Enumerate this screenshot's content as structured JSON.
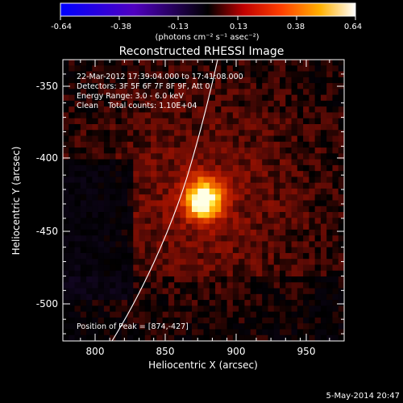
{
  "colorbar": {
    "ticks": [
      "-0.64",
      "-0.38",
      "-0.13",
      "0.13",
      "0.38",
      "0.64"
    ],
    "units": "(photons cm⁻² s⁻¹ asec⁻²)",
    "range": [
      -0.64,
      0.64
    ],
    "colormap": "rhessi-signed (blue-purple-black-red-orange-yellow-white)"
  },
  "title": "Reconstructed RHESSI Image",
  "info": {
    "line1": "22-Mar-2012 17:39:04.000 to 17:41:08.000",
    "line2": "Detectors: 3F 5F 6F 7F 8F 9F, Att 0",
    "line3": "Energy Range: 3.0 - 6.0 keV",
    "line4": "Clean    Total counts: 1.10E+04",
    "peak": "Position of Peak = [874,-427]"
  },
  "axes": {
    "xlabel": "Heliocentric X (arcsec)",
    "ylabel": "Heliocentric Y (arcsec)",
    "xticks": [
      "800",
      "850",
      "900",
      "950"
    ],
    "yticks": [
      "-350",
      "-400",
      "-450",
      "-500"
    ],
    "xlim": [
      778,
      970
    ],
    "ylim": [
      -525,
      -330
    ]
  },
  "timestamp": "5-May-2014 20:47",
  "source": {
    "peak_x": 874,
    "peak_y": -427,
    "peak_value": 0.64
  }
}
